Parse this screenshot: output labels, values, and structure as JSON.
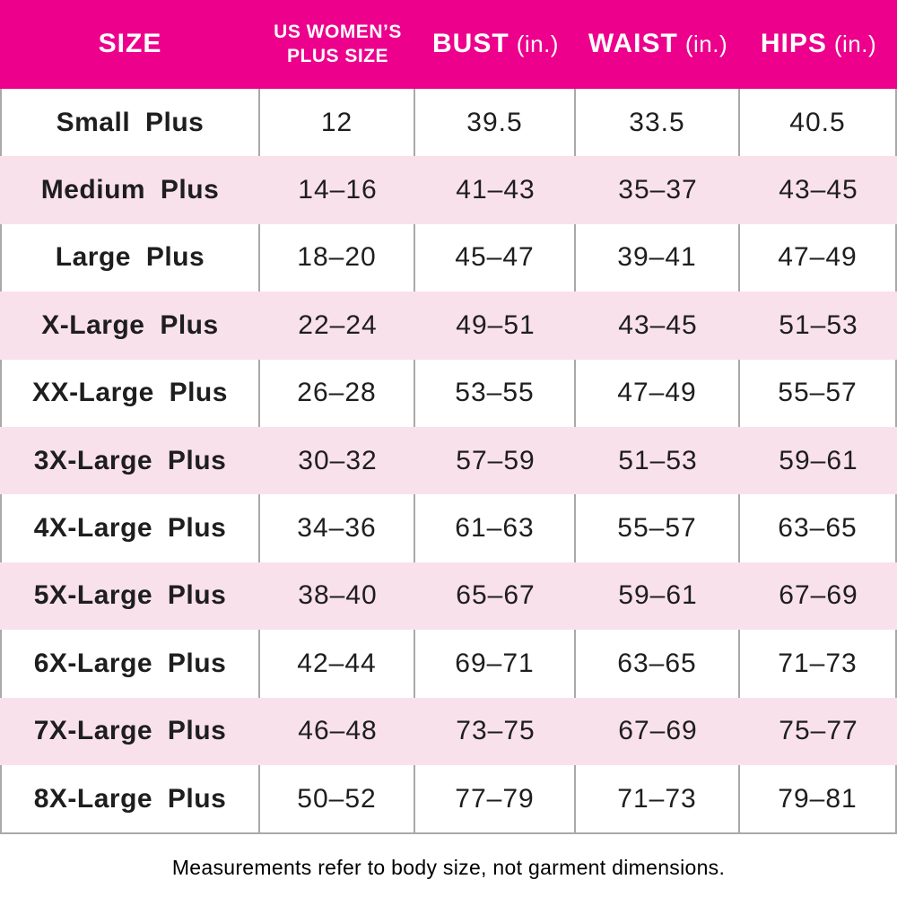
{
  "accent_color": "#EC008C",
  "row_alt_color": "#F9E1EC",
  "divider_color": "#A9A9A9",
  "header": {
    "col_size": "SIZE",
    "col_us_line1": "US WOMEN’S",
    "col_us_line2": "PLUS SIZE",
    "col_bust": "BUST",
    "col_waist": "WAIST",
    "col_hips": "HIPS",
    "unit": "(in.)"
  },
  "footer_note": "Measurements refer to body size, not garment dimensions.",
  "chart_data": {
    "type": "table",
    "columns": [
      "SIZE",
      "US WOMEN'S PLUS SIZE",
      "BUST (in.)",
      "WAIST (in.)",
      "HIPS (in.)"
    ],
    "rows": [
      [
        "Small Plus",
        "12",
        "39.5",
        "33.5",
        "40.5"
      ],
      [
        "Medium Plus",
        "14–16",
        "41–43",
        "35–37",
        "43–45"
      ],
      [
        "Large Plus",
        "18–20",
        "45–47",
        "39–41",
        "47–49"
      ],
      [
        "X-Large Plus",
        "22–24",
        "49–51",
        "43–45",
        "51–53"
      ],
      [
        "XX-Large Plus",
        "26–28",
        "53–55",
        "47–49",
        "55–57"
      ],
      [
        "3X-Large Plus",
        "30–32",
        "57–59",
        "51–53",
        "59–61"
      ],
      [
        "4X-Large Plus",
        "34–36",
        "61–63",
        "55–57",
        "63–65"
      ],
      [
        "5X-Large Plus",
        "38–40",
        "65–67",
        "59–61",
        "67–69"
      ],
      [
        "6X-Large Plus",
        "42–44",
        "69–71",
        "63–65",
        "71–73"
      ],
      [
        "7X-Large Plus",
        "46–48",
        "73–75",
        "67–69",
        "75–77"
      ],
      [
        "8X-Large Plus",
        "50–52",
        "77–79",
        "71–73",
        "79–81"
      ]
    ]
  }
}
